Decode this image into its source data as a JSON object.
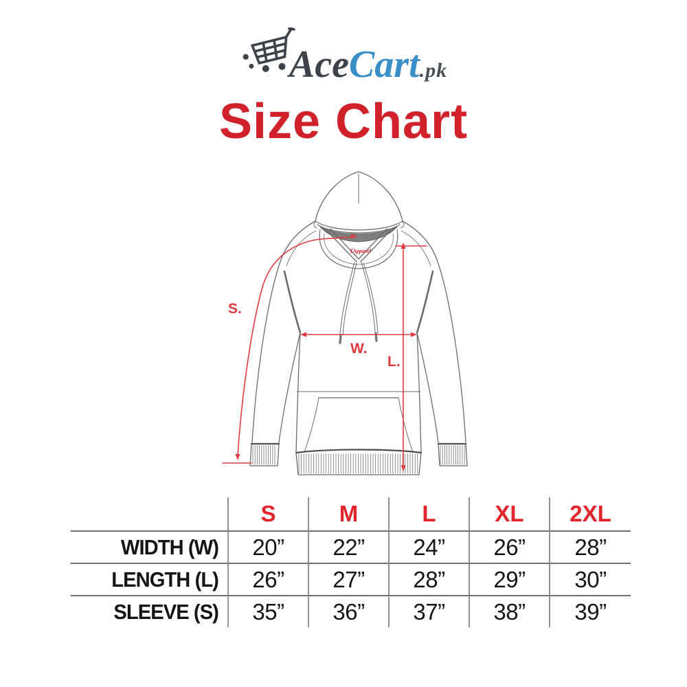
{
  "logo": {
    "icon": "shopping-cart-icon",
    "text_primary": "Ace",
    "text_accent": "Cart",
    "text_suffix": ".pk",
    "color_primary": "#3e434b",
    "color_accent": "#3a8fc7"
  },
  "title": {
    "text": "Size Chart",
    "color": "#d1212a"
  },
  "diagram": {
    "type": "hoodie-measurement-illustration",
    "annotations": {
      "sleeve_label": "S.",
      "width_label": "W.",
      "length_label": "L."
    },
    "hood_brand_mark": "TApparel",
    "annotation_color": "#e03a40"
  },
  "chart_data": {
    "type": "table",
    "title": "Size Chart",
    "header_color": "#e2242c",
    "columns": [
      "S",
      "M",
      "L",
      "XL",
      "2XL"
    ],
    "rows": [
      {
        "label": "WIDTH (W)",
        "values": [
          "20”",
          "22”",
          "24”",
          "26”",
          "28”"
        ]
      },
      {
        "label": "LENGTH (L)",
        "values": [
          "26”",
          "27”",
          "28”",
          "29”",
          "30”"
        ]
      },
      {
        "label": "SLEEVE (S)",
        "values": [
          "35”",
          "36”",
          "37”",
          "38”",
          "39”"
        ]
      }
    ]
  }
}
